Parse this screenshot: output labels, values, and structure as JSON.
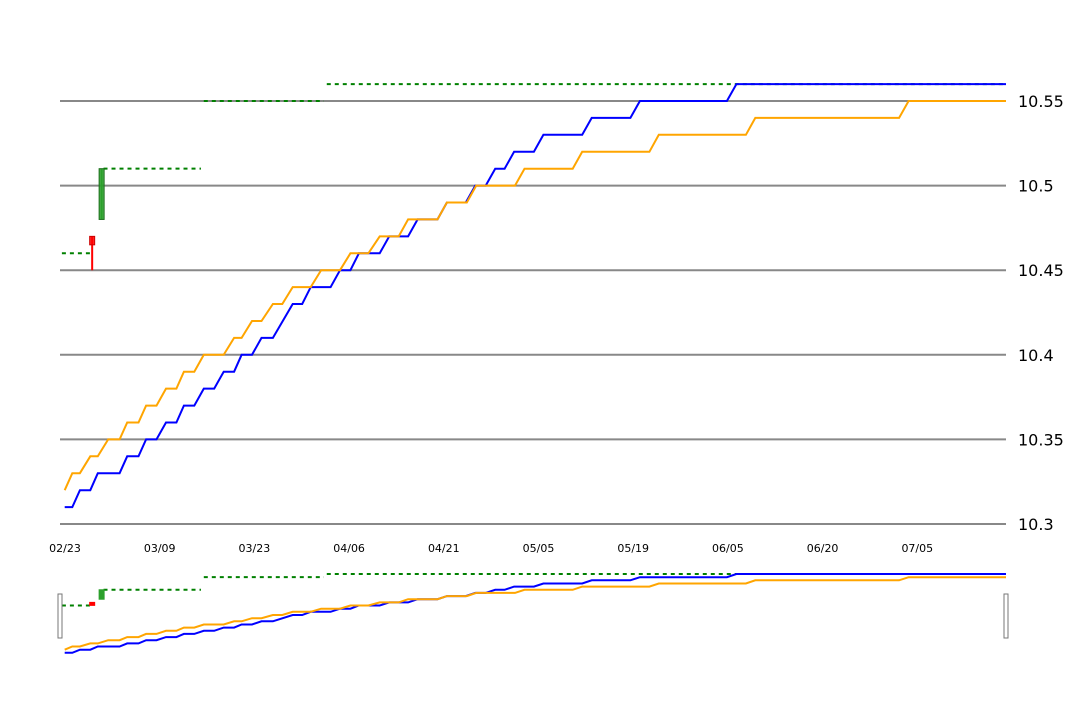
{
  "colors": {
    "background": "#ffffff",
    "gridline": "#888888",
    "series_blue": "#0000ff",
    "series_orange": "#ffa500",
    "dashed_reference": "#008000",
    "candle_up": "#2ca02c",
    "candle_down": "#ff0000",
    "navigator_handle": "#777777"
  },
  "chart_data": {
    "type": "line",
    "title": "",
    "xlabel": "",
    "ylabel": "",
    "grid": true,
    "x_ticks": [
      "02/23",
      "03/09",
      "03/23",
      "04/06",
      "04/21",
      "05/05",
      "05/19",
      "06/05",
      "06/20",
      "07/05"
    ],
    "y_ticks": [
      "10.3",
      "10.35",
      "10.4",
      "10.45",
      "10.5",
      "10.55"
    ],
    "xlim": [
      0,
      100
    ],
    "ylim": [
      10.3,
      10.55
    ],
    "y_axis_position": "right",
    "series": [
      {
        "color": "#0000ff",
        "points": [
          [
            0.5,
            10.31
          ],
          [
            1.3,
            10.31
          ],
          [
            2.1,
            10.32
          ],
          [
            3.2,
            10.32
          ],
          [
            4.0,
            10.33
          ],
          [
            6.3,
            10.33
          ],
          [
            7.1,
            10.34
          ],
          [
            8.3,
            10.34
          ],
          [
            9.1,
            10.35
          ],
          [
            10.2,
            10.35
          ],
          [
            11.2,
            10.36
          ],
          [
            12.3,
            10.36
          ],
          [
            13.1,
            10.37
          ],
          [
            14.2,
            10.37
          ],
          [
            15.2,
            10.38
          ],
          [
            16.3,
            10.38
          ],
          [
            17.3,
            10.39
          ],
          [
            18.4,
            10.39
          ],
          [
            19.2,
            10.4
          ],
          [
            20.3,
            10.4
          ],
          [
            21.3,
            10.41
          ],
          [
            22.5,
            10.41
          ],
          [
            24.6,
            10.43
          ],
          [
            25.6,
            10.43
          ],
          [
            26.5,
            10.44
          ],
          [
            28.6,
            10.44
          ],
          [
            29.6,
            10.45
          ],
          [
            30.7,
            10.45
          ],
          [
            31.6,
            10.46
          ],
          [
            33.8,
            10.46
          ],
          [
            34.8,
            10.47
          ],
          [
            36.8,
            10.47
          ],
          [
            37.8,
            10.48
          ],
          [
            39.9,
            10.48
          ],
          [
            40.9,
            10.49
          ],
          [
            42.9,
            10.49
          ],
          [
            43.9,
            10.5
          ],
          [
            45.0,
            10.5
          ],
          [
            46.0,
            10.51
          ],
          [
            47.0,
            10.51
          ],
          [
            48.0,
            10.52
          ],
          [
            50.1,
            10.52
          ],
          [
            51.1,
            10.53
          ],
          [
            55.2,
            10.53
          ],
          [
            56.2,
            10.54
          ],
          [
            60.3,
            10.54
          ],
          [
            61.3,
            10.55
          ],
          [
            70.5,
            10.55
          ],
          [
            71.5,
            10.56
          ],
          [
            100.0,
            10.56
          ]
        ]
      },
      {
        "color": "#ffa500",
        "points": [
          [
            0.5,
            10.32
          ],
          [
            1.3,
            10.33
          ],
          [
            2.1,
            10.33
          ],
          [
            3.2,
            10.34
          ],
          [
            4.0,
            10.34
          ],
          [
            5.1,
            10.35
          ],
          [
            6.3,
            10.35
          ],
          [
            7.1,
            10.36
          ],
          [
            8.3,
            10.36
          ],
          [
            9.1,
            10.37
          ],
          [
            10.2,
            10.37
          ],
          [
            11.2,
            10.38
          ],
          [
            12.3,
            10.38
          ],
          [
            13.1,
            10.39
          ],
          [
            14.2,
            10.39
          ],
          [
            15.2,
            10.4
          ],
          [
            17.3,
            10.4
          ],
          [
            18.4,
            10.41
          ],
          [
            19.2,
            10.41
          ],
          [
            20.3,
            10.42
          ],
          [
            21.3,
            10.42
          ],
          [
            22.5,
            10.43
          ],
          [
            23.5,
            10.43
          ],
          [
            24.6,
            10.44
          ],
          [
            26.5,
            10.44
          ],
          [
            27.6,
            10.45
          ],
          [
            29.6,
            10.45
          ],
          [
            30.7,
            10.46
          ],
          [
            32.6,
            10.46
          ],
          [
            33.8,
            10.47
          ],
          [
            35.8,
            10.47
          ],
          [
            36.8,
            10.48
          ],
          [
            39.9,
            10.48
          ],
          [
            40.9,
            10.49
          ],
          [
            43.0,
            10.49
          ],
          [
            44.0,
            10.5
          ],
          [
            48.1,
            10.5
          ],
          [
            49.1,
            10.51
          ],
          [
            54.2,
            10.51
          ],
          [
            55.2,
            10.52
          ],
          [
            62.3,
            10.52
          ],
          [
            63.3,
            10.53
          ],
          [
            72.5,
            10.53
          ],
          [
            73.5,
            10.54
          ],
          [
            88.7,
            10.54
          ],
          [
            89.7,
            10.55
          ],
          [
            100.0,
            10.55
          ]
        ]
      }
    ],
    "reference_lines": [
      {
        "x0": 0.2,
        "x1": 3.3,
        "y": 10.46
      },
      {
        "x0": 4.6,
        "x1": 14.9,
        "y": 10.51
      },
      {
        "x0": 15.2,
        "x1": 27.9,
        "y": 10.55
      },
      {
        "x0": 28.2,
        "x1": 100.0,
        "y": 10.56
      }
    ],
    "candles": [
      {
        "x": 3.4,
        "open": 10.465,
        "close": 10.47,
        "high": 10.47,
        "low": 10.45,
        "color": "#ff0000"
      },
      {
        "x": 4.4,
        "open": 10.48,
        "close": 10.51,
        "high": 10.51,
        "low": 10.48,
        "color": "#2ca02c"
      }
    ],
    "navigator": {
      "present": true,
      "window": [
        0,
        100
      ]
    }
  }
}
